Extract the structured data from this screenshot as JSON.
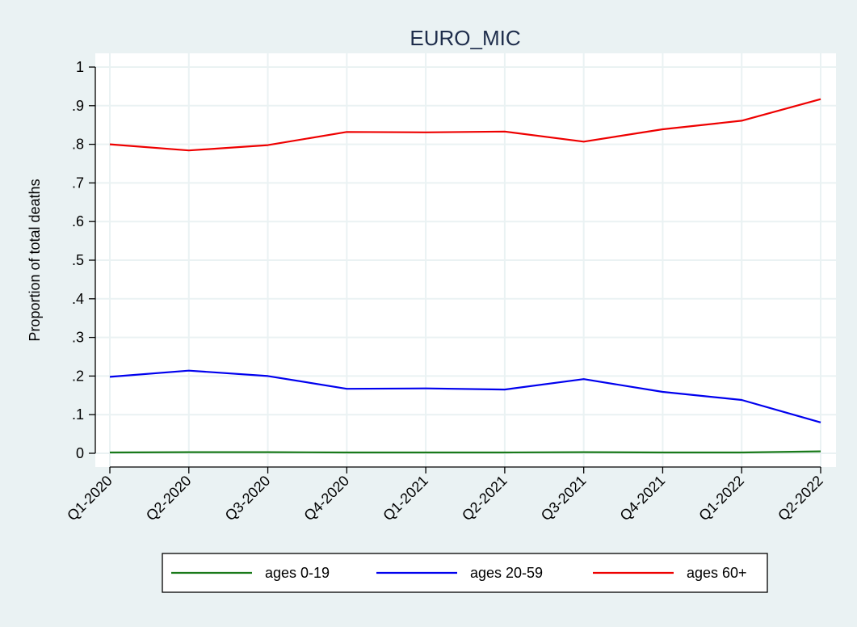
{
  "chart_data": {
    "type": "line",
    "title": "EURO_MIC",
    "xlabel": "",
    "ylabel": "Proportion of total deaths",
    "ylim": [
      0,
      1
    ],
    "yticks": [
      0,
      0.1,
      0.2,
      0.3,
      0.4,
      0.5,
      0.6,
      0.7,
      0.8,
      0.9,
      1
    ],
    "ytick_labels": [
      "0",
      ".1",
      ".2",
      ".3",
      ".4",
      ".5",
      ".6",
      ".7",
      ".8",
      ".9",
      "1"
    ],
    "categories": [
      "Q1-2020",
      "Q2-2020",
      "Q3-2020",
      "Q4-2020",
      "Q1-2021",
      "Q2-2021",
      "Q3-2021",
      "Q4-2021",
      "Q1-2022",
      "Q2-2022"
    ],
    "grid": true,
    "legend_position": "bottom",
    "series": [
      {
        "name": "ages 0-19",
        "color": "#1a7a1a",
        "values": [
          0.002,
          0.003,
          0.003,
          0.002,
          0.002,
          0.002,
          0.003,
          0.002,
          0.002,
          0.005
        ]
      },
      {
        "name": "ages 20-59",
        "color": "#0000ee",
        "values": [
          0.198,
          0.214,
          0.2,
          0.167,
          0.168,
          0.165,
          0.192,
          0.159,
          0.138,
          0.08
        ]
      },
      {
        "name": "ages 60+",
        "color": "#ee0000",
        "values": [
          0.8,
          0.784,
          0.798,
          0.832,
          0.831,
          0.833,
          0.807,
          0.839,
          0.861,
          0.917
        ]
      }
    ]
  },
  "colors": {
    "background": "#eaf2f3",
    "plot_background": "#ffffff",
    "grid": "#eaf2f3",
    "axis": "#000000",
    "title": "#1e2d4b"
  }
}
